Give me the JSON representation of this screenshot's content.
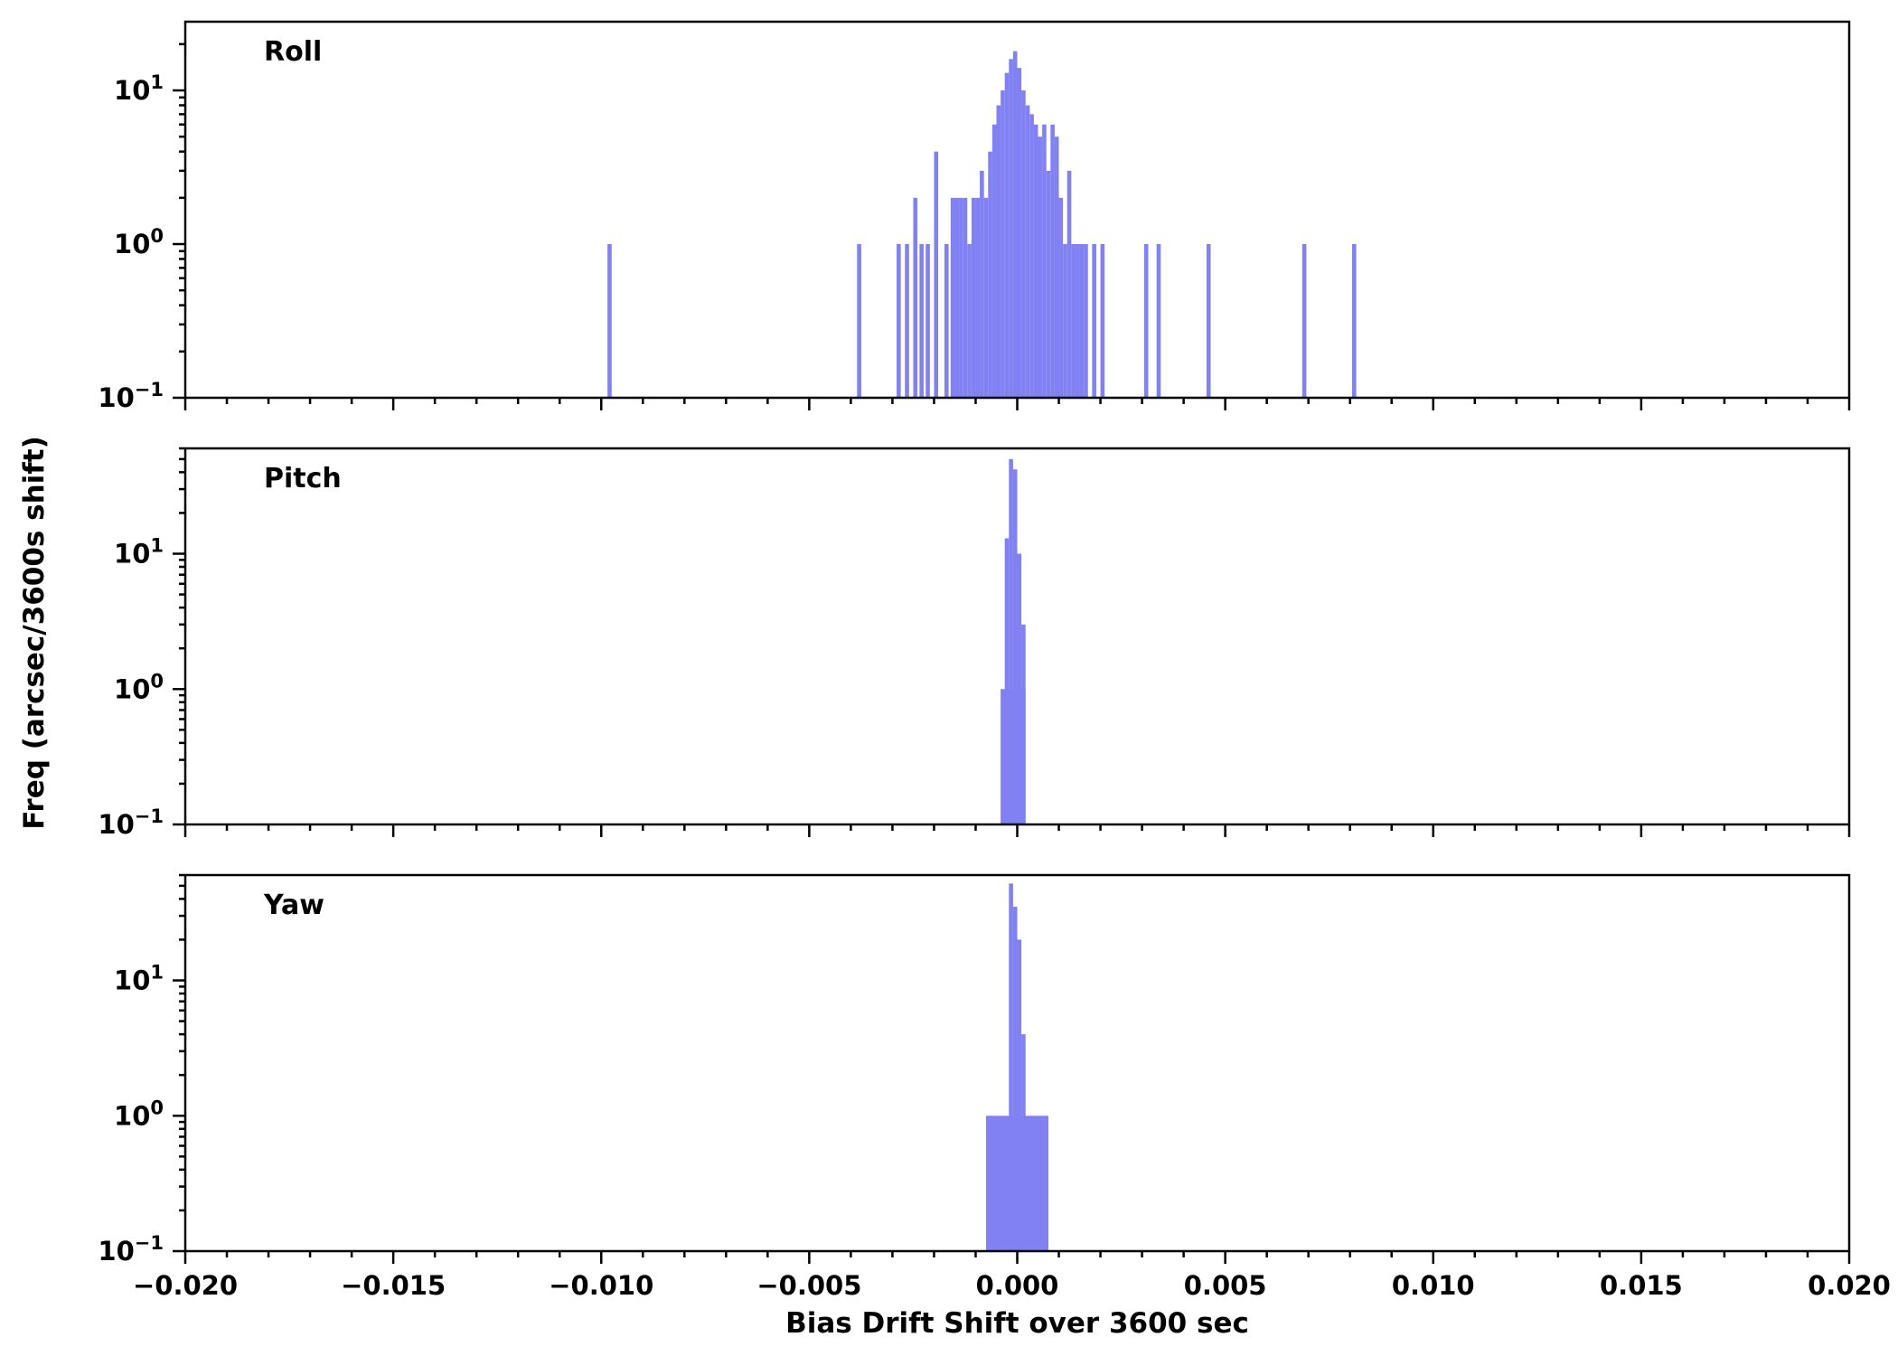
{
  "chart_data": {
    "type": "bar",
    "subtype": "histogram",
    "title": "",
    "xlabel": "Bias Drift Shift over 3600 sec",
    "ylabel": "Freq (arcsec/3600s shift)",
    "xlim": [
      -0.02,
      0.02
    ],
    "x_major_ticks": [
      -0.02,
      -0.015,
      -0.01,
      -0.005,
      0,
      0.005,
      0.01,
      0.015,
      0.02
    ],
    "x_tick_labels": [
      "−0.020",
      "−0.015",
      "−0.010",
      "−0.005",
      "0.000",
      "0.005",
      "0.010",
      "0.015",
      "0.020"
    ],
    "x_minor_step": 0.001,
    "y_major_ticks": [
      0.1,
      1,
      10
    ],
    "y_tick_labels": [
      "10^−1",
      "10^0",
      "10^1"
    ],
    "y_scale": "log",
    "grid": false,
    "legend": null,
    "bar_color": "#8181f3",
    "default_bin_width": 0.0001,
    "panels": [
      {
        "title": "Roll",
        "ylim": [
          0.1,
          28
        ],
        "bars": [
          [
            -0.0098,
            1
          ],
          [
            -0.0038,
            1
          ],
          [
            -0.00285,
            1
          ],
          [
            -0.00265,
            1
          ],
          [
            -0.00245,
            2
          ],
          [
            -0.0023,
            1
          ],
          [
            -0.00215,
            1
          ],
          [
            -0.00195,
            4
          ],
          [
            -0.0017,
            1
          ],
          [
            -0.00155,
            2
          ],
          [
            -0.00145,
            2
          ],
          [
            -0.00135,
            2
          ],
          [
            -0.00125,
            2
          ],
          [
            -0.00115,
            1
          ],
          [
            -0.00105,
            2
          ],
          [
            -0.00095,
            2
          ],
          [
            -0.00085,
            3
          ],
          [
            -0.00075,
            2
          ],
          [
            -0.00065,
            4
          ],
          [
            -0.00055,
            6
          ],
          [
            -0.00045,
            8
          ],
          [
            -0.00035,
            10
          ],
          [
            -0.00025,
            13
          ],
          [
            -0.00015,
            16
          ],
          [
            -5e-05,
            18
          ],
          [
            5e-05,
            14
          ],
          [
            0.00015,
            10
          ],
          [
            0.00025,
            8
          ],
          [
            0.00035,
            7
          ],
          [
            0.00045,
            6
          ],
          [
            0.00055,
            5
          ],
          [
            0.00065,
            6
          ],
          [
            0.00075,
            3
          ],
          [
            0.00085,
            6
          ],
          [
            0.00095,
            5
          ],
          [
            0.00105,
            2
          ],
          [
            0.00115,
            1
          ],
          [
            0.00125,
            3
          ],
          [
            0.00135,
            1
          ],
          [
            0.00145,
            1
          ],
          [
            0.00155,
            1
          ],
          [
            0.00165,
            1
          ],
          [
            0.00185,
            1
          ],
          [
            0.00205,
            1
          ],
          [
            0.0031,
            1
          ],
          [
            0.0034,
            1
          ],
          [
            0.0046,
            1
          ],
          [
            0.0069,
            1
          ],
          [
            0.0081,
            1
          ]
        ]
      },
      {
        "title": "Pitch",
        "ylim": [
          0.1,
          60
        ],
        "bars": [
          [
            -0.0001,
            1,
            0.0006
          ],
          [
            -0.00025,
            13
          ],
          [
            -0.00015,
            50
          ],
          [
            -5e-05,
            42
          ],
          [
            5e-05,
            10
          ],
          [
            0.00015,
            3
          ]
        ]
      },
      {
        "title": "Yaw",
        "ylim": [
          0.1,
          60
        ],
        "bars": [
          [
            0.0,
            1,
            0.0015
          ],
          [
            -0.00015,
            52
          ],
          [
            -5e-05,
            35
          ],
          [
            5e-05,
            20
          ],
          [
            0.00015,
            4
          ]
        ]
      }
    ]
  }
}
